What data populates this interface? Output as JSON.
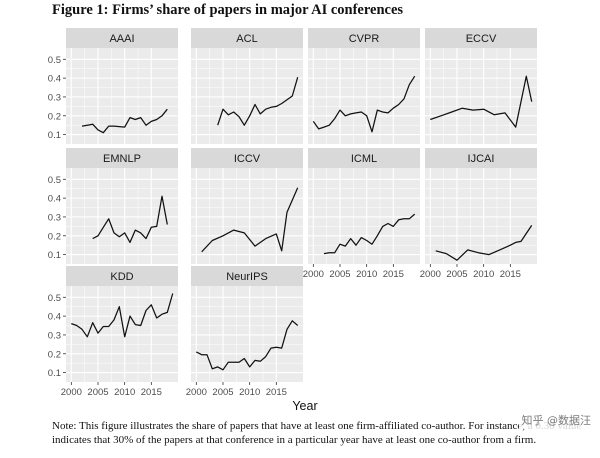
{
  "figure_title": "Figure 1: Firms’ share of papers in major AI conferences",
  "note": "Note: This figure illustrates the share of papers that have at least one firm-affiliated co-author. For instance, a 0.30 value indicates that 30% of the papers at that conference in a particular year have at least one co-author from a firm.",
  "watermark": "知乎 @数据汪",
  "chart_data": {
    "type": "line",
    "layout": "facet-grid",
    "xlabel": "Year",
    "ylabel": "",
    "xlim": [
      1999,
      2020
    ],
    "ylim": [
      0.05,
      0.56
    ],
    "x_ticks": [
      2000,
      2005,
      2010,
      2015
    ],
    "y_ticks": [
      0.1,
      0.2,
      0.3,
      0.4,
      0.5
    ],
    "grid": true,
    "colors": {
      "panel_bg": "#ebebeb",
      "strip_bg": "#d9d9d9",
      "grid": "#ffffff",
      "line": "#111111"
    },
    "panels": [
      {
        "name": "AAAI",
        "x": [
          2002,
          2003,
          2004,
          2005,
          2006,
          2007,
          2008,
          2010,
          2011,
          2012,
          2013,
          2014,
          2015,
          2016,
          2017,
          2018
        ],
        "y": [
          0.145,
          0.15,
          0.155,
          0.125,
          0.11,
          0.145,
          0.145,
          0.14,
          0.19,
          0.18,
          0.19,
          0.15,
          0.17,
          0.18,
          0.2,
          0.235
        ]
      },
      {
        "name": "ACL",
        "x": [
          2004,
          2005,
          2006,
          2007,
          2008,
          2009,
          2010,
          2011,
          2012,
          2013,
          2014,
          2015,
          2016,
          2017,
          2018,
          2019
        ],
        "y": [
          0.15,
          0.235,
          0.205,
          0.22,
          0.195,
          0.15,
          0.2,
          0.26,
          0.21,
          0.235,
          0.245,
          0.25,
          0.265,
          0.285,
          0.305,
          0.405
        ]
      },
      {
        "name": "CVPR",
        "x": [
          2000,
          2001,
          2002,
          2003,
          2004,
          2005,
          2006,
          2007,
          2008,
          2009,
          2010,
          2011,
          2012,
          2013,
          2014,
          2015,
          2016,
          2017,
          2018,
          2019
        ],
        "y": [
          0.17,
          0.13,
          0.14,
          0.15,
          0.185,
          0.23,
          0.2,
          0.21,
          0.215,
          0.22,
          0.2,
          0.115,
          0.23,
          0.22,
          0.215,
          0.24,
          0.26,
          0.29,
          0.365,
          0.41
        ]
      },
      {
        "name": "ECCV",
        "x": [
          2000,
          2002,
          2004,
          2006,
          2008,
          2010,
          2012,
          2014,
          2016,
          2018,
          2019
        ],
        "y": [
          0.18,
          0.2,
          0.22,
          0.24,
          0.23,
          0.235,
          0.205,
          0.215,
          0.14,
          0.41,
          0.275
        ]
      },
      {
        "name": "EMNLP",
        "x": [
          2004,
          2005,
          2006,
          2007,
          2008,
          2009,
          2010,
          2011,
          2012,
          2013,
          2014,
          2015,
          2016,
          2017,
          2018
        ],
        "y": [
          0.185,
          0.2,
          0.245,
          0.29,
          0.215,
          0.195,
          0.215,
          0.165,
          0.23,
          0.215,
          0.185,
          0.245,
          0.25,
          0.41,
          0.26
        ]
      },
      {
        "name": "ICCV",
        "x": [
          2001,
          2003,
          2005,
          2007,
          2009,
          2011,
          2013,
          2015,
          2016,
          2017,
          2019
        ],
        "y": [
          0.115,
          0.175,
          0.2,
          0.23,
          0.215,
          0.145,
          0.185,
          0.21,
          0.12,
          0.325,
          0.455
        ]
      },
      {
        "name": "ICML",
        "x": [
          2002,
          2003,
          2004,
          2005,
          2006,
          2007,
          2008,
          2009,
          2010,
          2011,
          2012,
          2013,
          2014,
          2015,
          2016,
          2017,
          2018,
          2019
        ],
        "y": [
          0.105,
          0.11,
          0.11,
          0.155,
          0.145,
          0.185,
          0.15,
          0.19,
          0.175,
          0.155,
          0.2,
          0.25,
          0.265,
          0.25,
          0.285,
          0.29,
          0.29,
          0.315
        ]
      },
      {
        "name": "IJCAI",
        "x": [
          2001,
          2003,
          2005,
          2007,
          2009,
          2011,
          2013,
          2015,
          2016,
          2017,
          2019
        ],
        "y": [
          0.12,
          0.105,
          0.07,
          0.125,
          0.11,
          0.1,
          0.125,
          0.15,
          0.165,
          0.17,
          0.255
        ]
      },
      {
        "name": "KDD",
        "x": [
          2000,
          2001,
          2002,
          2003,
          2004,
          2005,
          2006,
          2007,
          2008,
          2009,
          2010,
          2011,
          2012,
          2013,
          2014,
          2015,
          2016,
          2017,
          2018,
          2019
        ],
        "y": [
          0.36,
          0.35,
          0.33,
          0.29,
          0.365,
          0.31,
          0.345,
          0.345,
          0.38,
          0.45,
          0.29,
          0.4,
          0.355,
          0.35,
          0.43,
          0.46,
          0.39,
          0.41,
          0.42,
          0.52
        ]
      },
      {
        "name": "NeurIPS",
        "x": [
          2000,
          2001,
          2002,
          2003,
          2004,
          2005,
          2006,
          2007,
          2008,
          2009,
          2010,
          2011,
          2012,
          2013,
          2014,
          2015,
          2016,
          2017,
          2018,
          2019
        ],
        "y": [
          0.21,
          0.195,
          0.195,
          0.12,
          0.13,
          0.115,
          0.155,
          0.155,
          0.155,
          0.175,
          0.13,
          0.165,
          0.16,
          0.185,
          0.23,
          0.235,
          0.23,
          0.33,
          0.375,
          0.35
        ]
      }
    ]
  }
}
